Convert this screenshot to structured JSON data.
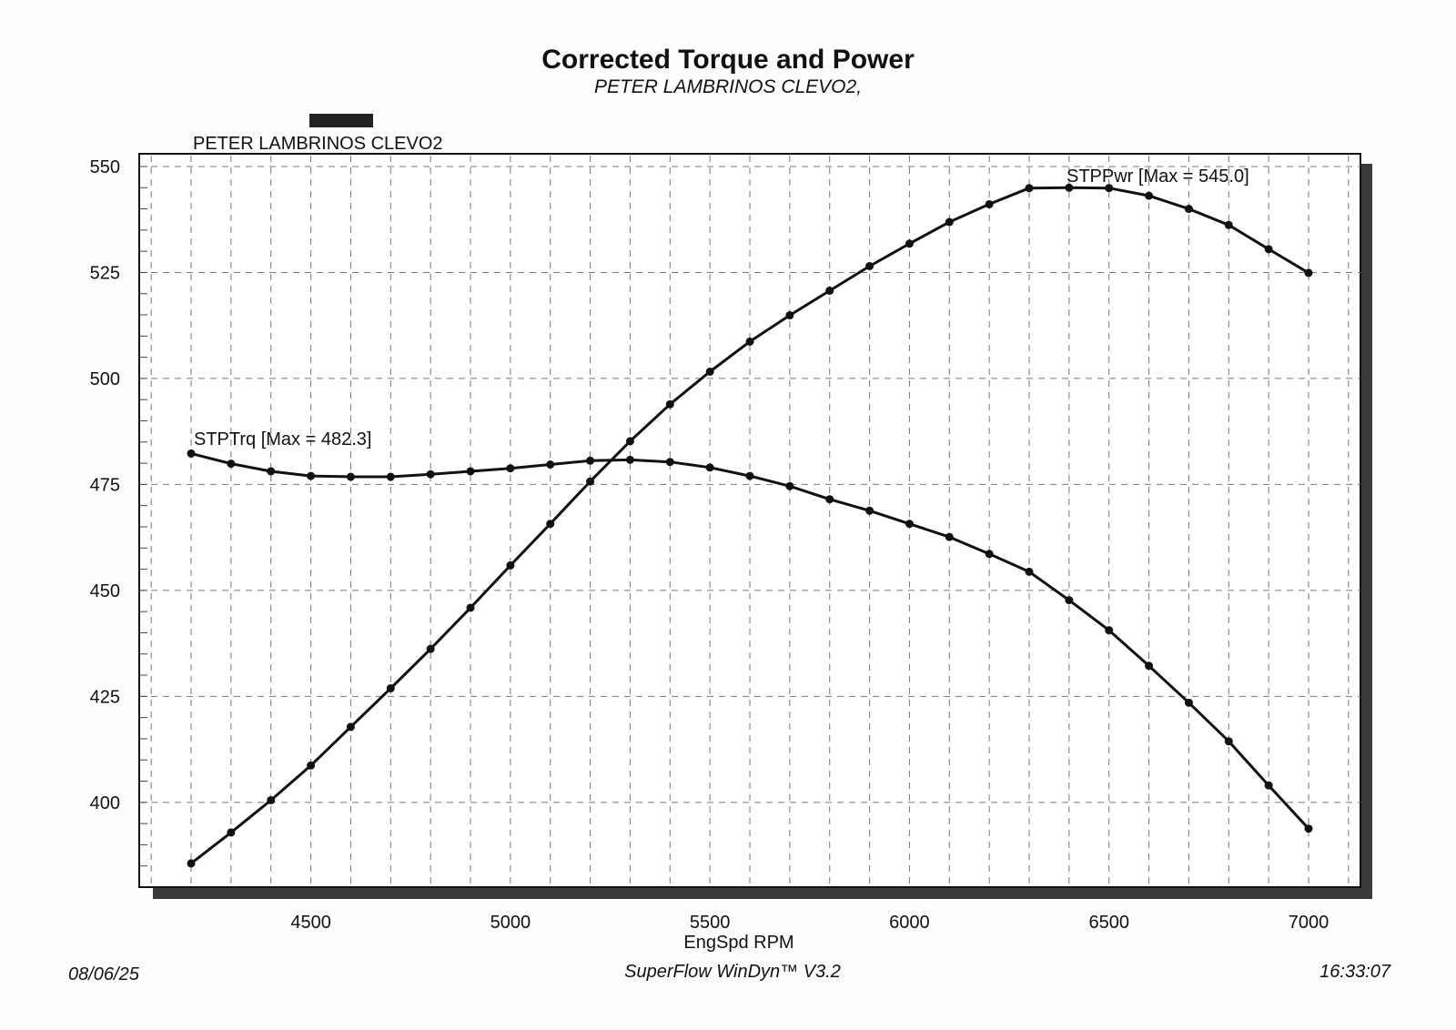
{
  "chart_data": {
    "type": "line",
    "title": "Corrected Torque and Power",
    "subtitle": "PETER LAMBRINOS CLEVO2,",
    "legend": {
      "entries": [
        "PETER LAMBRINOS CLEVO2"
      ],
      "swatch_color": "#222222",
      "placement": "top-left"
    },
    "xlabel": "EngSpd RPM",
    "ylabel": "",
    "xlim": [
      4070,
      7130
    ],
    "ylim": [
      380,
      553
    ],
    "x_ticks": [
      4500,
      5000,
      5500,
      6000,
      6500,
      7000
    ],
    "x_tick_labels": [
      "4500",
      "5000",
      "5500",
      "6000",
      "6500",
      "7000"
    ],
    "y_ticks": [
      400,
      425,
      450,
      475,
      500,
      525,
      550
    ],
    "y_tick_labels": [
      "400",
      "425",
      "450",
      "475",
      "500",
      "525",
      "550"
    ],
    "grid": true,
    "x": [
      4200,
      4300,
      4400,
      4500,
      4600,
      4700,
      4800,
      4900,
      5000,
      5100,
      5200,
      5300,
      5400,
      5500,
      5600,
      5700,
      5800,
      5900,
      6000,
      6100,
      6200,
      6300,
      6400,
      6500,
      6600,
      6700,
      6800,
      6900,
      7000
    ],
    "series": [
      {
        "name": "STPTrq",
        "annotation": "STPTrq [Max = 482.3]",
        "values": [
          482.3,
          479.9,
          478.1,
          477.0,
          476.8,
          476.8,
          477.4,
          478.1,
          478.8,
          479.7,
          480.6,
          480.8,
          480.3,
          479.0,
          477.0,
          474.6,
          471.5,
          468.8,
          465.7,
          462.6,
          458.6,
          454.4,
          447.7,
          440.6,
          432.2,
          423.5,
          414.4,
          404.0,
          393.8
        ]
      },
      {
        "name": "STPPwr",
        "annotation": "STPPwr [Max = 545.0]",
        "values": [
          385.6,
          392.9,
          400.5,
          408.7,
          417.8,
          426.9,
          436.2,
          445.9,
          455.9,
          465.7,
          475.7,
          485.2,
          493.9,
          501.6,
          508.7,
          514.9,
          520.7,
          526.5,
          531.8,
          536.9,
          541.1,
          544.9,
          545.0,
          544.9,
          543.1,
          540.0,
          536.2,
          530.5,
          524.9
        ]
      }
    ],
    "line_color": "#111111",
    "shadow_color": "#3a3a3a"
  },
  "footer": {
    "date": "08/06/25",
    "software": "SuperFlow WinDyn™ V3.2",
    "time": "16:33:07"
  }
}
